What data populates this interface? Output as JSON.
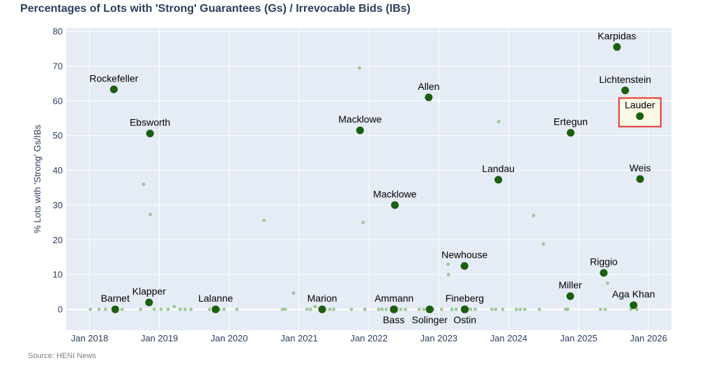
{
  "page": {
    "title": "Percentages of Lots with 'Strong' Guarantees (Gs) / Irrevocable Bids (IBs)",
    "source": "Source: HENI News"
  },
  "chart_data": {
    "type": "scatter",
    "title": "Percentages of Lots with 'Strong' Guarantees (Gs) / Irrevocable Bids (IBs)",
    "xlabel": "",
    "ylabel": "% Lots with 'Strong' Gs/IBs",
    "ylim": [
      -6,
      81
    ],
    "y_ticks": [
      0,
      10,
      20,
      30,
      40,
      50,
      60,
      70,
      80
    ],
    "x_ticks": [
      "Jan 2018",
      "Jan 2019",
      "Jan 2020",
      "Jan 2021",
      "Jan 2022",
      "Jan 2023",
      "Jan 2024",
      "Jan 2025",
      "Jan 2026"
    ],
    "xlim": [
      "2017-09-01",
      "2026-05-01"
    ],
    "grid": true,
    "colors": {
      "plot_bg": "#e5ecf6",
      "grid": "#ffffff",
      "major": "#1a5e0e",
      "minor": "#8fbf84",
      "highlight_stroke": "#e8342c",
      "highlight_fill": "#fafae6",
      "axis_text": "#2a3f5f"
    },
    "major_points": [
      {
        "label": "Rockefeller",
        "date": "2018-05-08",
        "y": 63.3,
        "pos": "above"
      },
      {
        "label": "Ebsworth",
        "date": "2018-11-13",
        "y": 50.6,
        "pos": "above"
      },
      {
        "label": "Barnet",
        "date": "2018-05-15",
        "y": 0,
        "pos": "above"
      },
      {
        "label": "Klapper",
        "date": "2018-11-08",
        "y": 2,
        "pos": "above"
      },
      {
        "label": "Lalanne",
        "date": "2019-10-22",
        "y": 0,
        "pos": "above"
      },
      {
        "label": "Marion",
        "date": "2021-05-01",
        "y": 0,
        "pos": "above"
      },
      {
        "label": "Macklowe",
        "date": "2021-11-15",
        "y": 51.5,
        "pos": "above"
      },
      {
        "label": "Macklowe",
        "date": "2022-05-16",
        "y": 30,
        "pos": "above"
      },
      {
        "label": "Ammann",
        "date": "2022-05-12",
        "y": 0,
        "pos": "above"
      },
      {
        "label": "Bass",
        "date": "2022-05-10",
        "y": 0,
        "pos": "below"
      },
      {
        "label": "Allen",
        "date": "2022-11-09",
        "y": 61,
        "pos": "above"
      },
      {
        "label": "Solinger",
        "date": "2022-11-14",
        "y": 0,
        "pos": "below"
      },
      {
        "label": "Newhouse",
        "date": "2023-05-15",
        "y": 12.5,
        "pos": "above"
      },
      {
        "label": "Fineberg",
        "date": "2023-05-16",
        "y": 0,
        "pos": "above"
      },
      {
        "label": "Ostin",
        "date": "2023-05-17",
        "y": 0,
        "pos": "below"
      },
      {
        "label": "Landau",
        "date": "2023-11-08",
        "y": 37.3,
        "pos": "above"
      },
      {
        "label": "Ertegun",
        "date": "2024-11-20",
        "y": 50.8,
        "pos": "above"
      },
      {
        "label": "Miller",
        "date": "2024-11-18",
        "y": 3.8,
        "pos": "above"
      },
      {
        "label": "Riggio",
        "date": "2025-05-12",
        "y": 10.5,
        "pos": "above"
      },
      {
        "label": "Karpidas",
        "date": "2025-07-20",
        "y": 75.5,
        "pos": "above"
      },
      {
        "label": "Lichtenstein",
        "date": "2025-09-01",
        "y": 63,
        "pos": "above"
      },
      {
        "label": "Lauder",
        "date": "2025-11-17",
        "y": 55.6,
        "pos": "above",
        "highlight": true
      },
      {
        "label": "Weis",
        "date": "2025-11-18",
        "y": 37.5,
        "pos": "above"
      },
      {
        "label": "Aga Khan",
        "date": "2025-10-15",
        "y": 1.2,
        "pos": "above"
      }
    ],
    "minor_points": [
      {
        "date": "2018-01-05",
        "y": 0
      },
      {
        "date": "2018-02-20",
        "y": 0
      },
      {
        "date": "2018-03-25",
        "y": 0
      },
      {
        "date": "2018-06-20",
        "y": 0
      },
      {
        "date": "2018-09-25",
        "y": 0
      },
      {
        "date": "2018-10-10",
        "y": 36
      },
      {
        "date": "2018-11-15",
        "y": 27.3
      },
      {
        "date": "2018-12-05",
        "y": 0
      },
      {
        "date": "2019-01-10",
        "y": 0
      },
      {
        "date": "2019-02-15",
        "y": 0
      },
      {
        "date": "2019-03-20",
        "y": 0.8
      },
      {
        "date": "2019-04-20",
        "y": 0
      },
      {
        "date": "2019-05-15",
        "y": 0
      },
      {
        "date": "2019-06-15",
        "y": 0
      },
      {
        "date": "2019-09-20",
        "y": 0
      },
      {
        "date": "2019-11-10",
        "y": 0
      },
      {
        "date": "2019-12-05",
        "y": 0
      },
      {
        "date": "2020-02-10",
        "y": 0
      },
      {
        "date": "2020-07-01",
        "y": 25.6
      },
      {
        "date": "2020-10-05",
        "y": 0
      },
      {
        "date": "2020-10-20",
        "y": 0
      },
      {
        "date": "2020-12-02",
        "y": 4.7
      },
      {
        "date": "2021-02-10",
        "y": 0
      },
      {
        "date": "2021-03-01",
        "y": 0
      },
      {
        "date": "2021-03-25",
        "y": 0.8
      },
      {
        "date": "2021-06-10",
        "y": 0
      },
      {
        "date": "2021-06-30",
        "y": 0
      },
      {
        "date": "2021-10-01",
        "y": 0
      },
      {
        "date": "2021-11-12",
        "y": 69.5
      },
      {
        "date": "2021-12-01",
        "y": 25
      },
      {
        "date": "2021-12-10",
        "y": 0
      },
      {
        "date": "2022-02-20",
        "y": 0
      },
      {
        "date": "2022-03-10",
        "y": 0
      },
      {
        "date": "2022-04-01",
        "y": 0
      },
      {
        "date": "2022-06-15",
        "y": 0
      },
      {
        "date": "2022-07-10",
        "y": 0
      },
      {
        "date": "2022-09-20",
        "y": 0
      },
      {
        "date": "2022-10-15",
        "y": 0
      },
      {
        "date": "2022-12-01",
        "y": 0
      },
      {
        "date": "2023-01-15",
        "y": 0
      },
      {
        "date": "2023-02-18",
        "y": 13
      },
      {
        "date": "2023-02-20",
        "y": 10
      },
      {
        "date": "2023-03-10",
        "y": 0
      },
      {
        "date": "2023-04-01",
        "y": 0
      },
      {
        "date": "2023-06-15",
        "y": 0
      },
      {
        "date": "2023-07-10",
        "y": 0
      },
      {
        "date": "2023-10-05",
        "y": 0
      },
      {
        "date": "2023-10-25",
        "y": 0
      },
      {
        "date": "2023-11-10",
        "y": 54
      },
      {
        "date": "2023-12-01",
        "y": 0
      },
      {
        "date": "2024-02-10",
        "y": 0
      },
      {
        "date": "2024-03-01",
        "y": 0
      },
      {
        "date": "2024-03-25",
        "y": 0
      },
      {
        "date": "2024-05-10",
        "y": 27
      },
      {
        "date": "2024-06-10",
        "y": 0
      },
      {
        "date": "2024-06-30",
        "y": 18.8
      },
      {
        "date": "2024-10-25",
        "y": 0
      },
      {
        "date": "2024-11-05",
        "y": 0
      },
      {
        "date": "2025-04-25",
        "y": 0
      },
      {
        "date": "2025-05-20",
        "y": 0
      },
      {
        "date": "2025-06-01",
        "y": 7.5
      },
      {
        "date": "2025-10-01",
        "y": 0
      },
      {
        "date": "2025-11-01",
        "y": 0
      }
    ]
  }
}
